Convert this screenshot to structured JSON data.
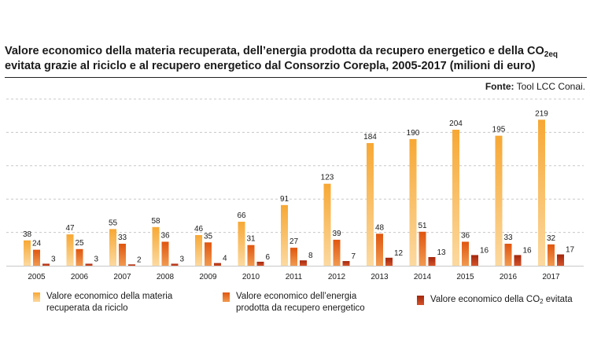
{
  "header": {
    "title_line1_main": "Valore economico della materia recuperata, dell’energia prodotta da recupero energetico e della CO",
    "title_line1_sub": "2eq",
    "title_line2": "evitata grazie al riciclo e al recupero energetico dal Consorzio Corepla, 2005-2017 (milioni di euro)",
    "source_label": "Fonte:",
    "source_text": "Tool LCC Conai."
  },
  "legend": {
    "item1_text": "Valore economico della materia recuperata da riciclo",
    "item2_text": "Valore economico dell’energia prodotta da recupero energetico",
    "item3_text_main": "Valore economico della CO",
    "item3_text_sub": "2",
    "item3_text_tail": " evitata"
  },
  "colors": {
    "series1_top": "#f7a834",
    "series1_bottom": "#fcd9a0",
    "series2_top": "#e0560f",
    "series2_bottom": "#f19a50",
    "series3_top": "#a3260c",
    "series3_bottom": "#d4532a",
    "gridline": "#c8c8c8",
    "axis": "#c8c8c8"
  },
  "chart_data": {
    "type": "bar",
    "categories": [
      "2005",
      "2006",
      "2007",
      "2008",
      "2009",
      "2010",
      "2011",
      "2012",
      "2013",
      "2014",
      "2015",
      "2016",
      "2017"
    ],
    "series": [
      {
        "name": "Valore economico della materia recuperata da riciclo",
        "values": [
          38,
          47,
          55,
          58,
          46,
          66,
          91,
          123,
          184,
          190,
          204,
          195,
          219
        ]
      },
      {
        "name": "Valore economico dell’energia prodotta da recupero energetico",
        "values": [
          24,
          25,
          33,
          36,
          35,
          31,
          27,
          39,
          48,
          51,
          36,
          33,
          32
        ]
      },
      {
        "name": "Valore economico della CO2 evitata",
        "values": [
          3,
          3,
          2,
          3,
          4,
          6,
          8,
          7,
          12,
          13,
          16,
          16,
          17
        ]
      }
    ],
    "ylim": [
      0,
      250
    ],
    "grid": true,
    "legend_position": "bottom"
  }
}
